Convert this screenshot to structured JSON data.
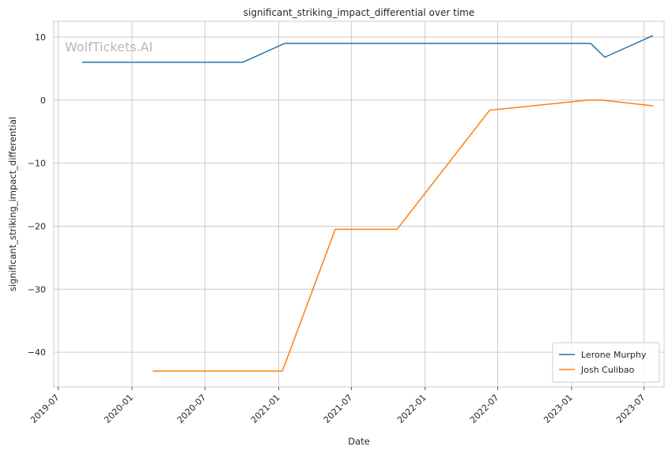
{
  "chart_data": {
    "type": "line",
    "title": "significant_striking_impact_differential over time",
    "xlabel": "Date",
    "ylabel": "significant_striking_impact_differential",
    "watermark": "WolfTickets.AI",
    "x_ticks": [
      "2019-07",
      "2020-01",
      "2020-07",
      "2021-01",
      "2021-07",
      "2022-01",
      "2022-07",
      "2023-01",
      "2023-07"
    ],
    "y_ticks": [
      10,
      0,
      -10,
      -20,
      -30,
      -40
    ],
    "ylim": [
      -45.5,
      12.5
    ],
    "xlim": [
      "2019-06-20",
      "2023-08-20"
    ],
    "grid": true,
    "legend_position": "lower-right",
    "series": [
      {
        "name": "Lerone Murphy",
        "color": "#1f77b4",
        "points": [
          {
            "x": "2019-08-31",
            "y": 6
          },
          {
            "x": "2020-10-03",
            "y": 6
          },
          {
            "x": "2021-01-16",
            "y": 9
          },
          {
            "x": "2023-02-18",
            "y": 9
          },
          {
            "x": "2023-03-25",
            "y": 6.8
          },
          {
            "x": "2023-07-22",
            "y": 10.2
          }
        ]
      },
      {
        "name": "Josh Culibao",
        "color": "#ff7f0e",
        "points": [
          {
            "x": "2020-02-23",
            "y": -43
          },
          {
            "x": "2021-01-10",
            "y": -43
          },
          {
            "x": "2021-05-22",
            "y": -20.5
          },
          {
            "x": "2021-10-23",
            "y": -20.5
          },
          {
            "x": "2022-06-11",
            "y": -1.6
          },
          {
            "x": "2023-02-12",
            "y": 0
          },
          {
            "x": "2023-03-18",
            "y": 0
          },
          {
            "x": "2023-07-22",
            "y": -0.9
          }
        ]
      }
    ]
  }
}
